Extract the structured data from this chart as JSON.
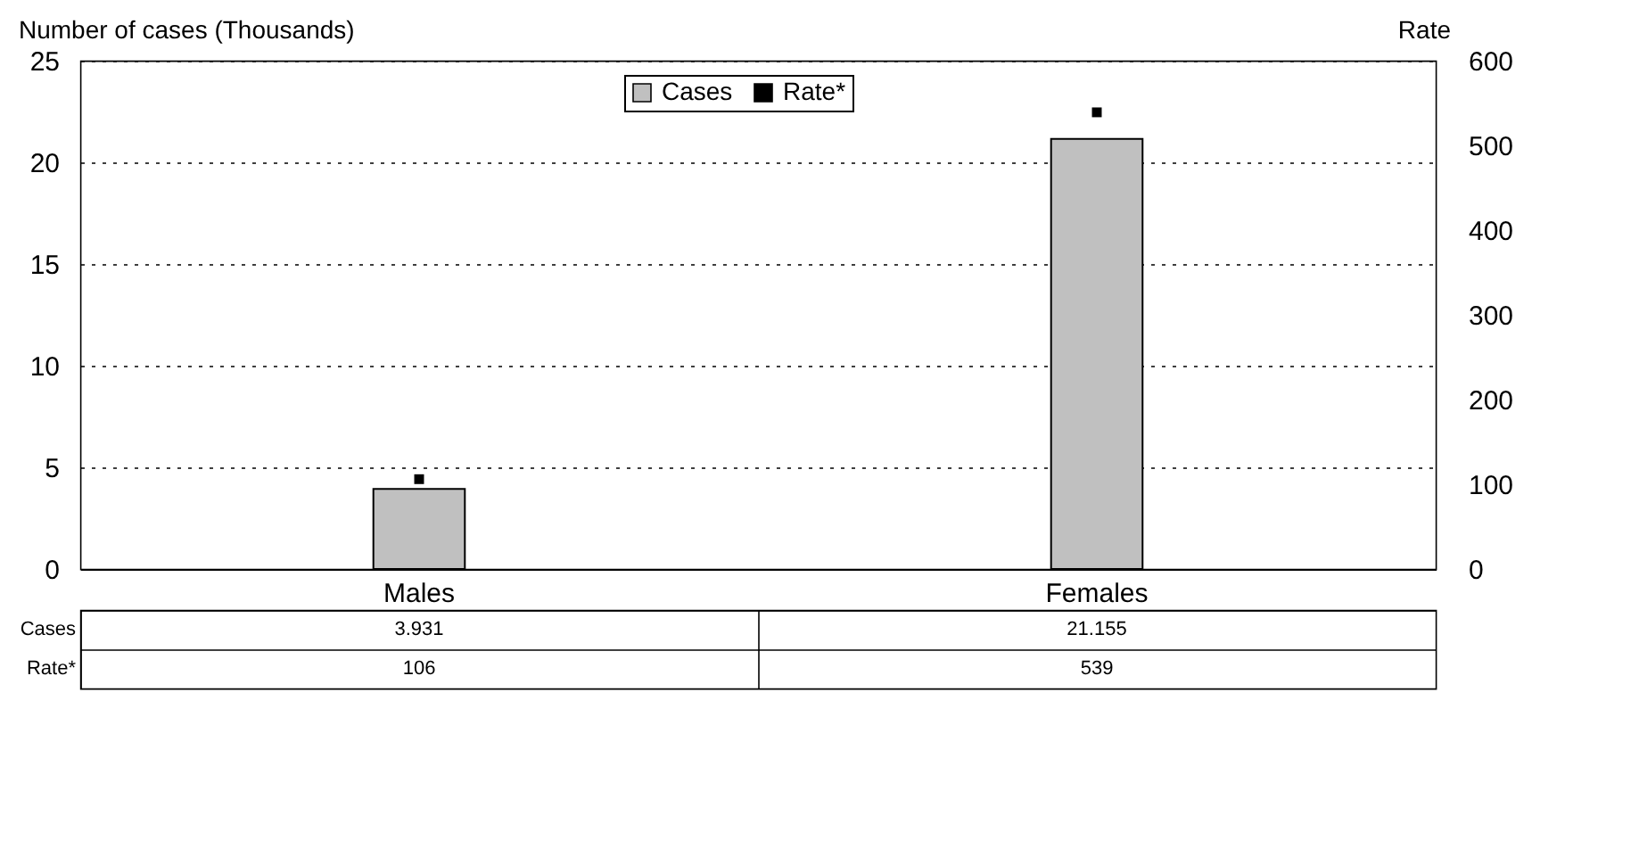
{
  "chart_data": {
    "type": "bar",
    "ylabel": "Number of cases (Thousands)",
    "y2label": "Rate",
    "categories": [
      "Males",
      "Females"
    ],
    "series": [
      {
        "name": "Cases",
        "color": "#c0c0c0",
        "values": [
          3.931,
          21.155
        ]
      },
      {
        "name": "Rate*",
        "type": "scatter",
        "axis": "y2",
        "color": "#000000",
        "values": [
          106,
          539
        ]
      }
    ],
    "ylim": [
      0,
      25
    ],
    "yticks": [
      0,
      5,
      10,
      15,
      20,
      25
    ],
    "y2lim": [
      0,
      600
    ],
    "y2ticks": [
      0,
      100,
      200,
      300,
      400,
      500,
      600
    ],
    "grid": "y",
    "legend": "top",
    "data_labels": true,
    "marker": "square"
  }
}
